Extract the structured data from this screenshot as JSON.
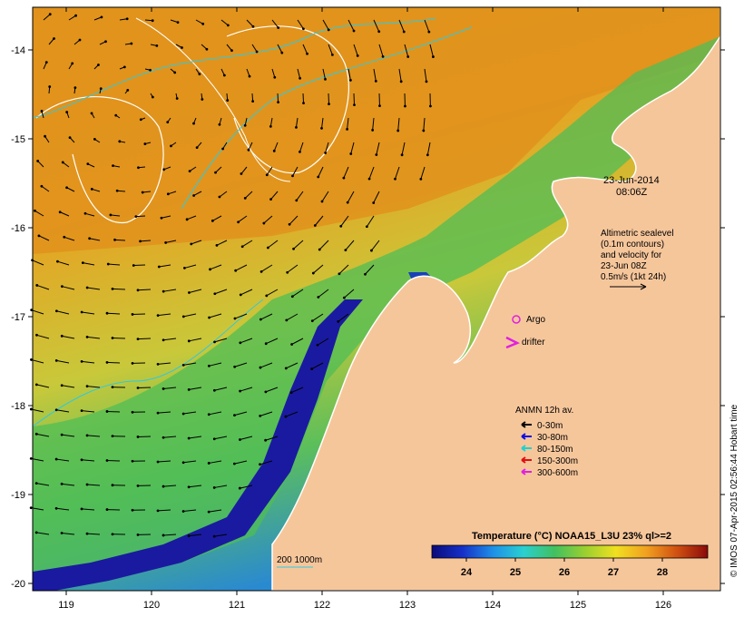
{
  "map": {
    "date": "23-Jun-2014",
    "time": "08:06Z",
    "lon_ticks": [
      "119",
      "120",
      "121",
      "122",
      "123",
      "124",
      "125",
      "126"
    ],
    "lat_ticks": [
      "-14",
      "-15",
      "-16",
      "-17",
      "-18",
      "-19",
      "-20"
    ],
    "colors": {
      "land": "#f6c69b",
      "coast": "#ffffff",
      "cold": "#1a1aa0",
      "warm": "#e3961e"
    }
  },
  "altimetry_note": {
    "line1": "Altimetric sealevel",
    "line2": "(0.1m contours)",
    "line3": "and velocity for",
    "line4": "23-Jun 08Z",
    "line5": "0.5m/s (1kt 24h)"
  },
  "markers": {
    "argo": "Argo",
    "drifter": "drifter"
  },
  "anmn_legend": {
    "title": "ANMN 12h av.",
    "items": [
      {
        "label": "0-30m",
        "color": "#000000"
      },
      {
        "label": "30-80m",
        "color": "#1010e0"
      },
      {
        "label": "80-150m",
        "color": "#20d0d0"
      },
      {
        "label": "150-300m",
        "color": "#e01010"
      },
      {
        "label": "300-600m",
        "color": "#e020e0"
      }
    ]
  },
  "colorbar": {
    "title": "Temperature (°C) NOAA15_L3U 23% ql>=2",
    "ticks": [
      "24",
      "25",
      "26",
      "27",
      "28"
    ],
    "stops": [
      "#0a0a7a",
      "#1530c8",
      "#1e90e6",
      "#2ad0d0",
      "#40c060",
      "#9ad030",
      "#f0e020",
      "#f0a020",
      "#d05010",
      "#8a0a0a"
    ]
  },
  "isobath_label": "200  1000m",
  "credit": "© IMOS 07-Apr-2015 02:56:44 Hobart time"
}
